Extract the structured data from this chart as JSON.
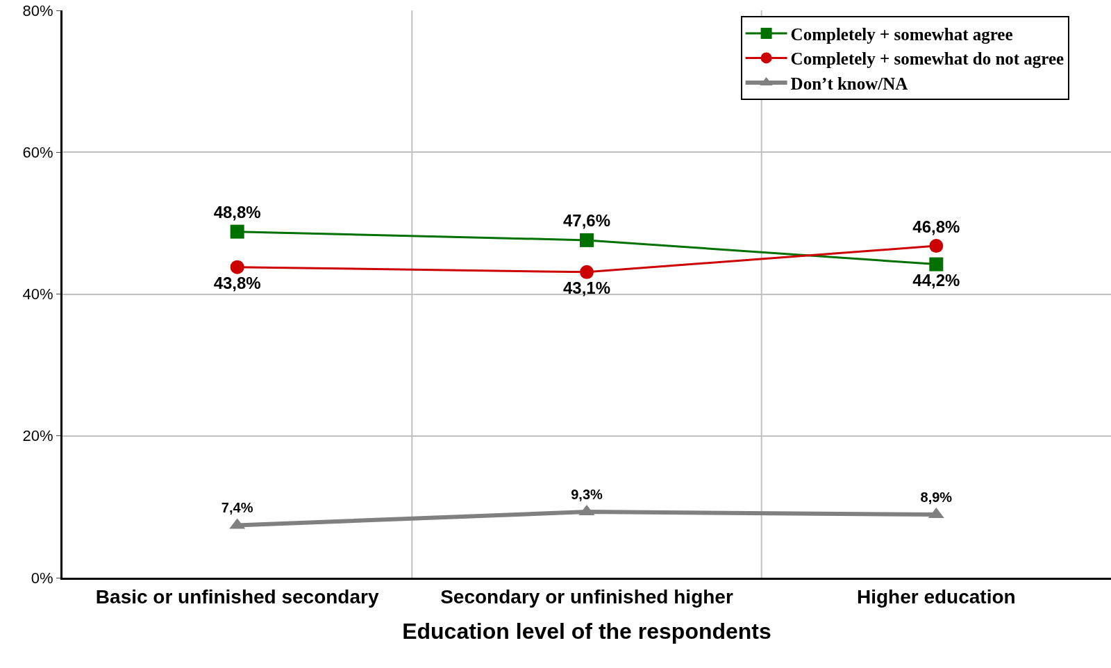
{
  "chart_data": {
    "type": "line",
    "xlabel": "Education level of the respondents",
    "categories": [
      "Basic or unfinished secondary",
      "Secondary or unfinished higher",
      "Higher education"
    ],
    "series": [
      {
        "name": "Completely + somewhat agree",
        "color": "#007000",
        "marker": "square",
        "values": [
          48.8,
          47.6,
          44.2
        ],
        "value_labels": [
          "48,8%",
          "47,6%",
          "44,2%"
        ]
      },
      {
        "name": "Completely + somewhat do not agree",
        "color": "#cc0000",
        "marker": "circle",
        "values": [
          43.8,
          43.1,
          46.8
        ],
        "value_labels": [
          "43,8%",
          "43,1%",
          "46,8%"
        ]
      },
      {
        "name": "Don’t know/NA",
        "color": "#808080",
        "marker": "triangle",
        "values": [
          7.4,
          9.3,
          8.9
        ],
        "value_labels": [
          "7,4%",
          "9,3%",
          "8,9%"
        ]
      }
    ],
    "ylim": [
      0,
      80
    ],
    "yticks": [
      {
        "value": 0,
        "label": "0%"
      },
      {
        "value": 20,
        "label": "20%"
      },
      {
        "value": 40,
        "label": "40%"
      },
      {
        "value": 60,
        "label": "60%"
      },
      {
        "value": 80,
        "label": "80%"
      }
    ],
    "grid": true,
    "legend": "top right",
    "line_style": "solid"
  }
}
